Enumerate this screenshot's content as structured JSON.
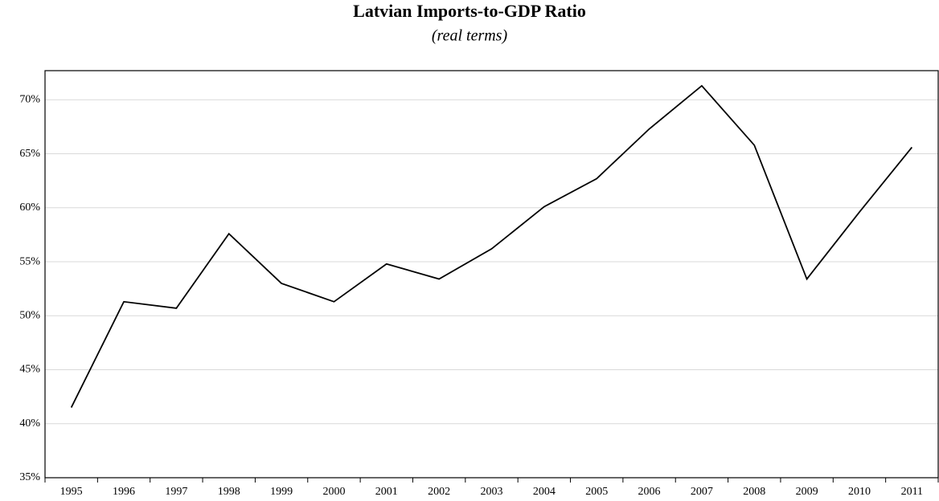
{
  "chart_data": {
    "type": "line",
    "title": "Latvian Imports-to-GDP Ratio",
    "subtitle": "(real terms)",
    "categories": [
      "1995",
      "1996",
      "1997",
      "1998",
      "1999",
      "2000",
      "2001",
      "2002",
      "2003",
      "2004",
      "2005",
      "2006",
      "2007",
      "2008",
      "2009",
      "2010",
      "2011"
    ],
    "values": [
      41.5,
      51.3,
      50.7,
      57.6,
      53.0,
      51.3,
      54.8,
      53.4,
      56.2,
      60.1,
      62.7,
      67.3,
      71.3,
      65.8,
      53.4,
      59.6,
      65.6
    ],
    "color": "#000000",
    "ylim": [
      35,
      72.7
    ],
    "yticks": [
      {
        "value": 35,
        "label": "35%"
      },
      {
        "value": 40,
        "label": "40%"
      },
      {
        "value": 45,
        "label": "45%"
      },
      {
        "value": 50,
        "label": "50%"
      },
      {
        "value": 55,
        "label": "55%"
      },
      {
        "value": 60,
        "label": "60%"
      },
      {
        "value": 65,
        "label": "65%"
      },
      {
        "value": 70,
        "label": "70%"
      }
    ],
    "grid": true
  }
}
